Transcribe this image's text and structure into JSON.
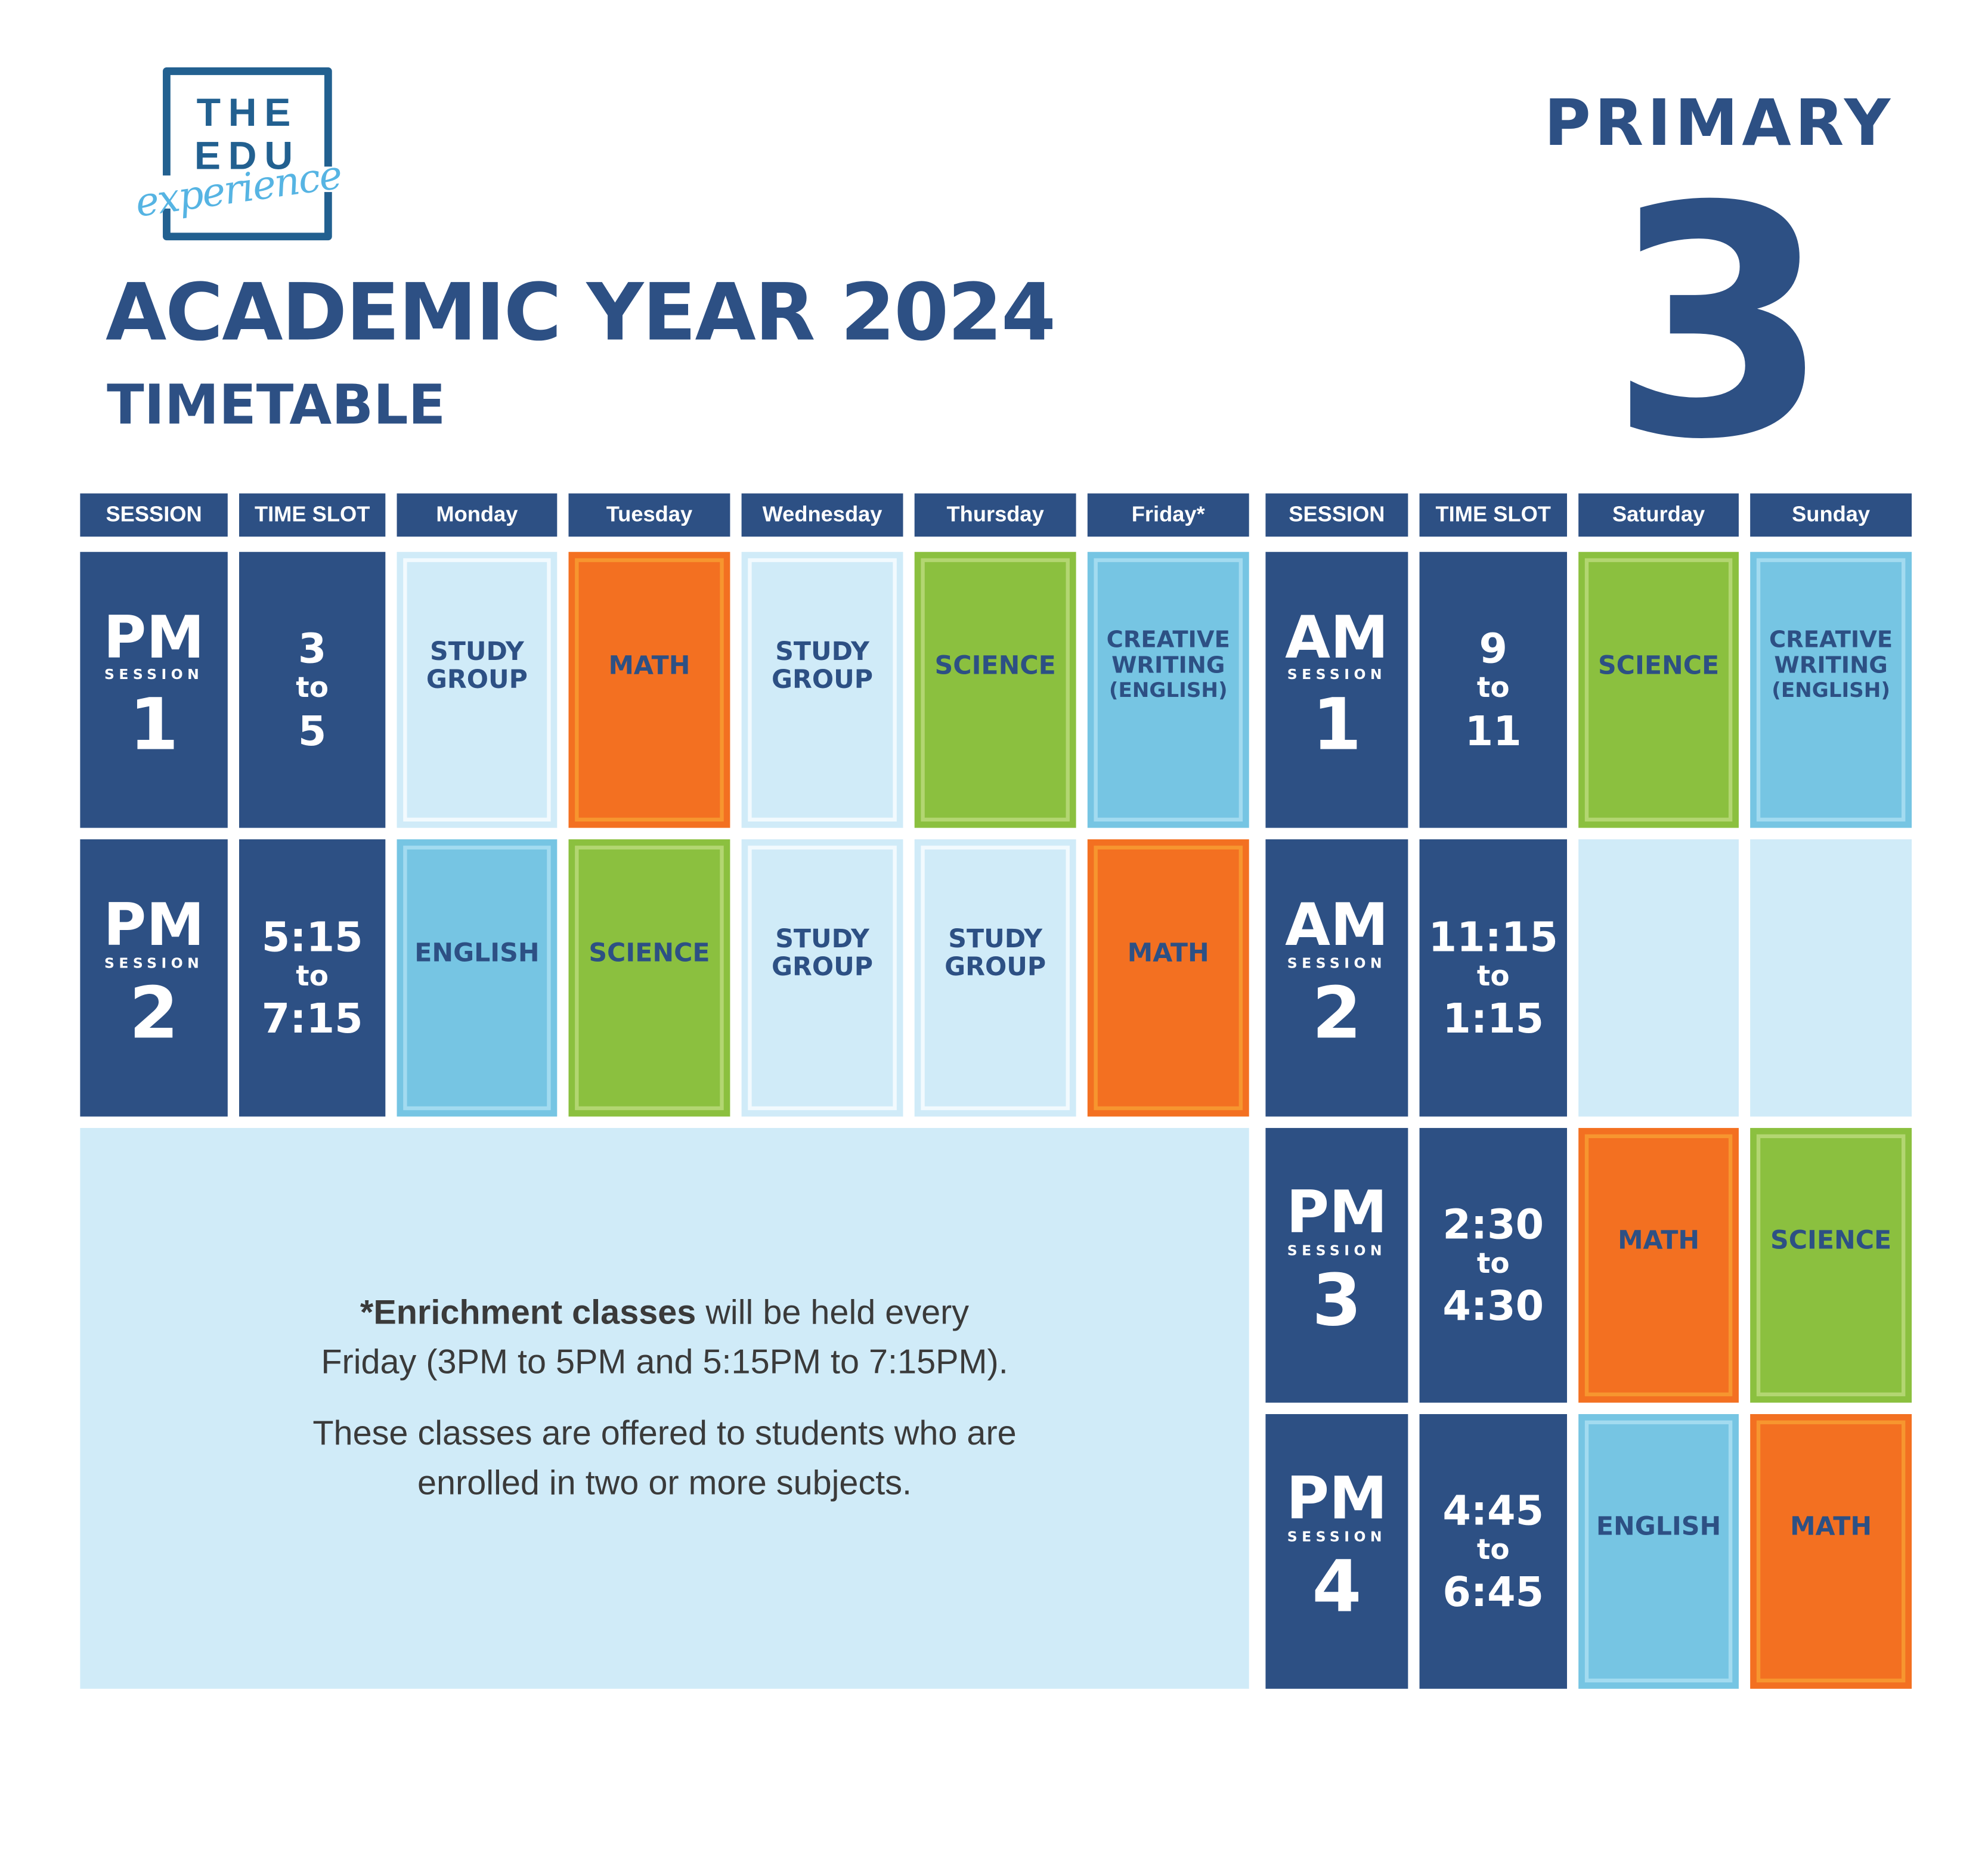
{
  "logo": {
    "line1": "THE",
    "line2": "EDU",
    "script": "experience"
  },
  "title": "ACADEMIC YEAR 2024",
  "subtitle": "TIMETABLE",
  "level": {
    "label": "PRIMARY",
    "number": "3"
  },
  "headers": [
    "SESSION",
    "TIME SLOT",
    "Monday",
    "Tuesday",
    "Wednesday",
    "Thursday",
    "Friday*",
    "SESSION",
    "TIME SLOT",
    "Saturday",
    "Sunday"
  ],
  "session_label": "SESSION",
  "to": "to",
  "weekday_sessions": [
    {
      "period": "PM",
      "number": "1",
      "start": "3",
      "end": "5",
      "classes": [
        "STUDY GROUP",
        "MATH",
        "STUDY GROUP",
        "SCIENCE",
        "CREATIVE WRITING"
      ],
      "friday_sub": "(ENGLISH)"
    },
    {
      "period": "PM",
      "number": "2",
      "start": "5:15",
      "end": "7:15",
      "classes": [
        "ENGLISH",
        "SCIENCE",
        "STUDY GROUP",
        "STUDY GROUP",
        "MATH"
      ]
    }
  ],
  "weekend_sessions": [
    {
      "period": "AM",
      "number": "1",
      "start": "9",
      "end": "11",
      "classes": [
        "SCIENCE",
        "CREATIVE WRITING"
      ],
      "sunday_sub": "(ENGLISH)"
    },
    {
      "period": "AM",
      "number": "2",
      "start": "11:15",
      "end": "1:15",
      "classes": [
        "",
        ""
      ]
    },
    {
      "period": "PM",
      "number": "3",
      "start": "2:30",
      "end": "4:30",
      "classes": [
        "MATH",
        "SCIENCE"
      ]
    },
    {
      "period": "PM",
      "number": "4",
      "start": "4:45",
      "end": "6:45",
      "classes": [
        "ENGLISH",
        "MATH"
      ]
    }
  ],
  "note": {
    "bold": "*Enrichment classes",
    "line1_rest": " will be held every",
    "line2": "Friday (3PM to 5PM and 5:15PM to 7:15PM).",
    "para2_line1": "These classes are offered to students who are",
    "para2_line2": "enrolled in two or more subjects."
  },
  "colors": {
    "navy": "#2d5084",
    "study": "#d0ebf8",
    "math": "#f37021",
    "science": "#8bc03f",
    "english": "#76c5e3",
    "logo_blue": "#226090",
    "logo_script": "#56b4e3"
  }
}
